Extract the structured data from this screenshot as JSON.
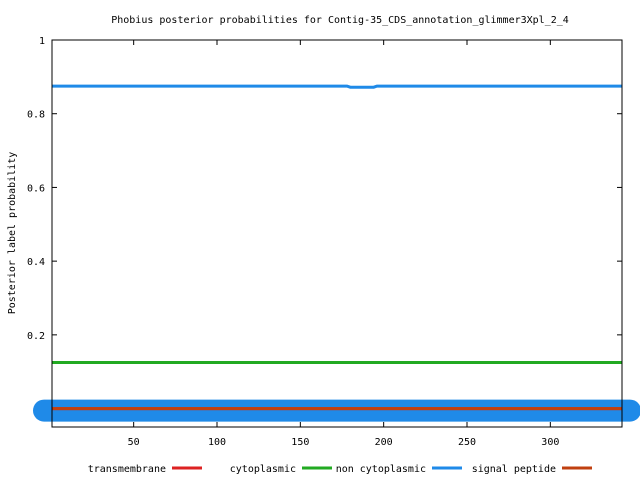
{
  "chart_data": {
    "type": "line",
    "title": "Phobius posterior probabilities for Contig-35_CDS_annotation_glimmer3Xpl_2_4",
    "xlabel": "",
    "ylabel": "Posterior label probability",
    "xlim": [
      1,
      343
    ],
    "ylim": [
      -0.05,
      1
    ],
    "x_ticks": [
      50,
      100,
      150,
      200,
      250,
      300
    ],
    "y_ticks": [
      0.2,
      0.4,
      0.6,
      0.8,
      1
    ],
    "y_tick_labels": [
      "0.2",
      "0.4",
      "0.6",
      "0.8",
      "1"
    ],
    "grid": false,
    "legend_position": "bottom",
    "series": [
      {
        "name": "transmembrane",
        "color": "#dd2222",
        "x": [
          1,
          343
        ],
        "y": [
          0,
          0
        ]
      },
      {
        "name": "cytoplasmic",
        "color": "#22aa22",
        "x": [
          1,
          343
        ],
        "y": [
          0.125,
          0.125
        ]
      },
      {
        "name": "non cytoplasmic",
        "color": "#1f8ae8",
        "x": [
          1,
          178,
          180,
          194,
          196,
          343
        ],
        "y": [
          0.875,
          0.875,
          0.872,
          0.872,
          0.875,
          0.875
        ]
      },
      {
        "name": "signal peptide",
        "color": "#c04010",
        "x": [
          1,
          343
        ],
        "y": [
          0,
          0
        ]
      }
    ]
  }
}
